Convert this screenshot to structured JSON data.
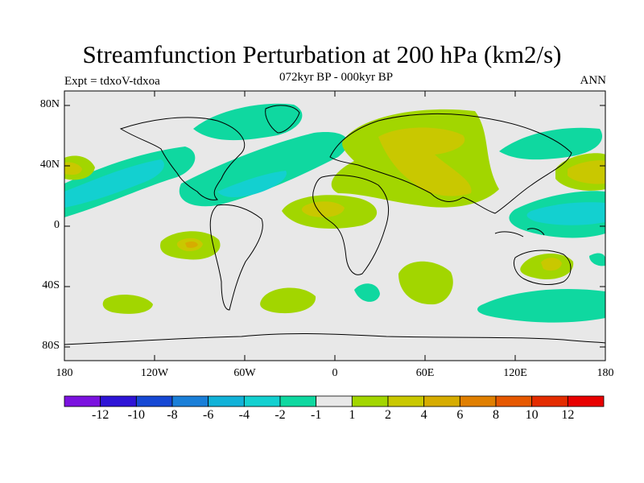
{
  "title": "Streamfunction Perturbation at 200 hPa (km2/s)",
  "subtitle": "072kyr BP - 000kyr BP",
  "experiment": "Expt = tdxoV-tdxoa",
  "season": "ANN",
  "axes": {
    "y_ticks": [
      "80N",
      "40N",
      "0",
      "40S",
      "80S"
    ],
    "x_ticks": [
      "180",
      "120W",
      "60W",
      "0",
      "60E",
      "120E",
      "180"
    ]
  },
  "colorbar": {
    "labels": [
      "-12",
      "-10",
      "-8",
      "-6",
      "-4",
      "-2",
      "-1",
      "1",
      "2",
      "4",
      "6",
      "8",
      "10",
      "12"
    ],
    "colors": [
      "#7b12df",
      "#2e14d6",
      "#1648d4",
      "#1a7fd8",
      "#11b2d8",
      "#13d0d0",
      "#0fd8a0",
      "#e8e8e8",
      "#a2d600",
      "#c9c800",
      "#d6ac00",
      "#e07f00",
      "#e65800",
      "#e42c00",
      "#e80000"
    ]
  },
  "map_colors": {
    "background": "#e8e8e8",
    "neg_weak": "#0fd8a0",
    "neg_mod": "#13d0d0",
    "pos_weak": "#a2d600",
    "pos_mod": "#c9c800",
    "pos_strong": "#d6ac00"
  }
}
